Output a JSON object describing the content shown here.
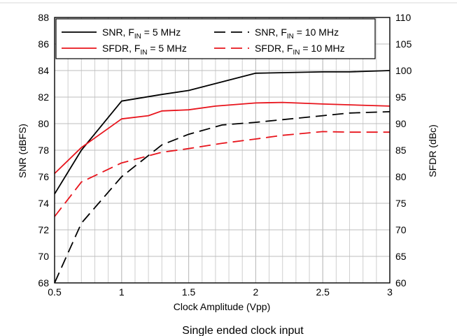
{
  "chart_data": {
    "type": "line",
    "xlabel": "Clock Amplitude (Vpp)",
    "ylabel_left": "SNR (dBFS)",
    "ylabel_right": "SFDR (dBc)",
    "caption": "Single ended clock input",
    "xlim": [
      0.5,
      3
    ],
    "ylim_left": [
      68,
      88
    ],
    "ylim_right": [
      60,
      110
    ],
    "x_ticks": [
      0.5,
      1,
      1.5,
      2,
      2.5,
      3
    ],
    "x_tick_labels": [
      "0.5",
      "1",
      "1.5",
      "2",
      "2.5",
      "3"
    ],
    "y_left_ticks": [
      68,
      70,
      72,
      74,
      76,
      78,
      80,
      82,
      84,
      86,
      88
    ],
    "y_right_ticks": [
      60,
      65,
      70,
      75,
      80,
      85,
      90,
      95,
      100,
      105,
      110
    ],
    "x_minor_step": 0.1,
    "grid": true,
    "legend_position": "top",
    "series": [
      {
        "name_parts": [
          "SNR, F",
          "IN",
          " = 5 MHz"
        ],
        "axis": "left",
        "color": "#000000",
        "dash": "solid",
        "x": [
          0.5,
          0.7,
          1.0,
          1.3,
          1.5,
          2.0,
          2.5,
          2.7,
          3.0
        ],
        "y": [
          74.7,
          78.0,
          81.7,
          82.2,
          82.5,
          83.8,
          83.9,
          83.9,
          84.0
        ]
      },
      {
        "name_parts": [
          "SNR, F",
          "IN",
          " = 10 MHz"
        ],
        "axis": "left",
        "color": "#000000",
        "dash": "dashed",
        "x": [
          0.5,
          0.7,
          1.0,
          1.3,
          1.5,
          1.75,
          2.0,
          2.2,
          2.5,
          2.7,
          3.0
        ],
        "y": [
          68.0,
          72.5,
          76.0,
          78.4,
          79.2,
          79.9,
          80.1,
          80.3,
          80.6,
          80.8,
          80.9
        ]
      },
      {
        "name_parts": [
          "SFDR, F",
          "IN",
          " = 5 MHz"
        ],
        "axis": "right",
        "color": "#e8141c",
        "dash": "solid",
        "x": [
          0.5,
          0.7,
          1.0,
          1.2,
          1.3,
          1.5,
          1.7,
          2.0,
          2.2,
          2.5,
          3.0
        ],
        "y": [
          80.6,
          85.5,
          90.9,
          91.5,
          92.4,
          92.6,
          93.3,
          93.9,
          94.0,
          93.7,
          93.3
        ]
      },
      {
        "name_parts": [
          "SFDR, F",
          "IN",
          " = 10 MHz"
        ],
        "axis": "right",
        "color": "#e8141c",
        "dash": "dashed",
        "x": [
          0.5,
          0.7,
          1.0,
          1.3,
          1.5,
          1.75,
          2.0,
          2.2,
          2.5,
          2.7,
          3.0
        ],
        "y": [
          72.5,
          79.0,
          82.6,
          84.6,
          85.3,
          86.3,
          87.1,
          87.8,
          88.5,
          88.4,
          88.4
        ]
      }
    ]
  }
}
